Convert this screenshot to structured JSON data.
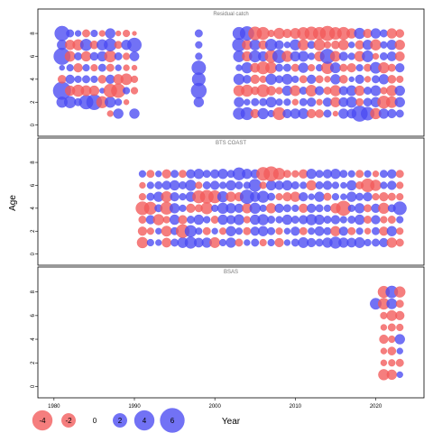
{
  "chart_data": {
    "type": "scatter",
    "subtype": "bubble-residuals",
    "xlabel": "Year",
    "ylabel": "Age",
    "xlim": [
      1978,
      2026
    ],
    "ylim": [
      -0.5,
      9.5
    ],
    "x_ticks": [
      1980,
      1990,
      2000,
      2010,
      2020
    ],
    "y_ticks": [
      0,
      2,
      4,
      6,
      8
    ],
    "colors": {
      "positive": "#4a4af2",
      "negative": "#f25a5a",
      "frame": "#000000",
      "panel_title": "#777777"
    },
    "legend": {
      "placement": "bottom-left",
      "entries": [
        {
          "label": "-4",
          "value": -4
        },
        {
          "label": "-2",
          "value": -2
        },
        {
          "label": "0",
          "value": 0
        },
        {
          "label": "2",
          "value": 2
        },
        {
          "label": "4",
          "value": 4
        },
        {
          "label": "6",
          "value": 6
        }
      ]
    },
    "panels": [
      {
        "name": "Residual catch",
        "ages": [
          1,
          2,
          3,
          4,
          5,
          6,
          7,
          8
        ],
        "years": [
          1981,
          1982,
          1983,
          1984,
          1985,
          1986,
          1987,
          1988,
          1989,
          1990,
          1998,
          2003,
          2004,
          2005,
          2006,
          2007,
          2008,
          2009,
          2010,
          2011,
          2012,
          2013,
          2014,
          2015,
          2016,
          2017,
          2018,
          2019,
          2020,
          2021,
          2022,
          2023
        ],
        "residuals": [
          [
            null,
            null,
            null,
            null,
            null,
            null,
            -0.4,
            1.0,
            null,
            1.0,
            null,
            1.4,
            1.6,
            -0.8,
            1.2,
            0.5,
            -1.6,
            0.8,
            1.0,
            1.1,
            -0.8,
            -0.7,
            0.6,
            -0.3,
            1.0,
            0.9,
            2.5,
            1.8,
            -1.2,
            1.0,
            0.8,
            0.6
          ],
          [
            1.2,
            1.4,
            0.6,
            2.0,
            2.4,
            -1.4,
            1.2,
            0.5,
            -0.3,
            null,
            1.0,
            1.0,
            0.4,
            0.6,
            0.6,
            1.1,
            0.5,
            0.5,
            -0.4,
            0.6,
            0.8,
            -0.4,
            0.8,
            -1.0,
            0.9,
            1.2,
            -0.6,
            0.7,
            1.0,
            -1.6,
            -1.3,
            1.0
          ],
          [
            3.2,
            -1.0,
            -1.4,
            -1.1,
            -1.0,
            0.3,
            -1.8,
            -2.0,
            0.5,
            -0.5,
            2.4,
            -1.2,
            -1.4,
            -0.7,
            -1.6,
            -0.9,
            -0.5,
            1.0,
            -1.1,
            0.6,
            -1.3,
            0.8,
            -0.6,
            -1.2,
            0.8,
            1.1,
            -1.0,
            0.6,
            1.1,
            -0.5,
            -1.2,
            1.0
          ],
          [
            -0.7,
            0.8,
            0.5,
            0.6,
            0.5,
            -0.7,
            0.8,
            -1.0,
            -1.3,
            -0.5,
            1.8,
            1.2,
            0.7,
            -0.8,
            -0.5,
            1.2,
            0.6,
            1.1,
            0.5,
            -0.6,
            0.8,
            -0.6,
            -0.4,
            1.0,
            -0.7,
            0.3,
            0.8,
            -0.4,
            0.6,
            1.0,
            -0.7,
            -0.5
          ],
          [
            0.3,
            0.5,
            -0.8,
            0.5,
            -0.5,
            0.6,
            -0.6,
            0.4,
            -0.4,
            -0.3,
            2.0,
            0.4,
            1.2,
            -0.9,
            -1.6,
            -1.3,
            0.6,
            0.6,
            -0.6,
            1.0,
            -0.5,
            0.5,
            -1.5,
            1.1,
            -0.6,
            -0.8,
            0.5,
            -0.6,
            1.3,
            -1.2,
            -0.6,
            0.8
          ],
          [
            2.8,
            -1.1,
            0.6,
            -1.0,
            0.7,
            1.0,
            -1.4,
            0.6,
            -0.5,
            0.9,
            0.5,
            1.3,
            -1.0,
            1.4,
            1.0,
            -1.6,
            1.8,
            -1.2,
            1.0,
            1.1,
            0.5,
            -1.0,
            2.2,
            -1.1,
            0.8,
            0.5,
            -1.1,
            1.3,
            -0.4,
            0.6,
            0.9,
            -0.9
          ],
          [
            1.0,
            -1.0,
            -1.2,
            1.4,
            -0.7,
            1.2,
            1.6,
            -0.6,
            1.0,
            2.0,
            0.5,
            1.8,
            -1.0,
            1.2,
            -0.8,
            1.4,
            0.8,
            0.4,
            1.2,
            -1.2,
            0.6,
            -1.3,
            -0.5,
            -0.7,
            -1.1,
            0.4,
            -0.8,
            1.0,
            -1.2,
            0.5,
            1.0,
            -1.0
          ],
          [
            2.2,
            0.6,
            0.4,
            -0.6,
            0.5,
            -0.4,
            1.0,
            -0.3,
            -0.5,
            -0.2,
            0.6,
            1.6,
            2.0,
            -1.8,
            -1.6,
            -0.5,
            -1.2,
            -0.8,
            -1.1,
            -1.5,
            -1.8,
            -1.6,
            -2.2,
            -1.5,
            -1.6,
            -1.0,
            1.2,
            -0.8,
            1.0,
            0.6,
            -1.0,
            -0.7
          ]
        ]
      },
      {
        "name": "BTS COAST",
        "ages": [
          1,
          2,
          3,
          4,
          5,
          6,
          7
        ],
        "years": [
          1991,
          1992,
          1993,
          1994,
          1995,
          1996,
          1997,
          1998,
          1999,
          2000,
          2001,
          2002,
          2003,
          2004,
          2005,
          2006,
          2007,
          2008,
          2009,
          2010,
          2011,
          2012,
          2013,
          2014,
          2015,
          2016,
          2017,
          2018,
          2019,
          2020,
          2021,
          2022,
          2023
        ],
        "residuals": [
          [
            -1.2,
            0.5,
            0.4,
            -0.9,
            0.6,
            1.1,
            1.4,
            0.9,
            1.0,
            -1.1,
            0.5,
            1.0,
            -0.6,
            0.4,
            0.6,
            -0.5,
            0.5,
            -0.8,
            0.4,
            0.6,
            1.1,
            0.8,
            0.6,
            1.0,
            1.4,
            1.0,
            0.9,
            1.1,
            0.5,
            0.6,
            0.8,
            -1.0,
            -0.6
          ],
          [
            -0.8,
            -0.5,
            0.4,
            -1.1,
            0.6,
            -1.8,
            1.4,
            0.5,
            -0.6,
            0.4,
            -0.5,
            1.0,
            0.5,
            -0.6,
            0.8,
            1.0,
            0.6,
            -0.5,
            0.4,
            0.8,
            -0.6,
            0.5,
            0.9,
            0.6,
            -1.0,
            0.8,
            -0.6,
            0.5,
            -0.4,
            0.6,
            -0.8,
            1.0,
            -0.5
          ],
          [
            -0.6,
            0.8,
            -1.2,
            -0.5,
            1.0,
            -0.8,
            0.6,
            1.0,
            0.5,
            -0.6,
            1.0,
            0.8,
            1.1,
            -0.5,
            1.0,
            1.2,
            0.6,
            0.5,
            1.0,
            0.6,
            0.8,
            1.2,
            1.0,
            0.6,
            0.8,
            0.5,
            0.6,
            1.0,
            -0.6,
            0.8,
            -0.5,
            -0.6,
            0.5
          ],
          [
            -1.8,
            -1.6,
            0.6,
            -1.6,
            1.0,
            0.5,
            -0.8,
            -0.6,
            -1.4,
            0.5,
            1.2,
            1.0,
            0.8,
            -1.0,
            1.2,
            0.5,
            -1.0,
            0.8,
            0.6,
            0.5,
            -0.8,
            0.8,
            0.6,
            0.5,
            -1.0,
            -2.2,
            0.5,
            1.0,
            -0.6,
            0.8,
            -1.2,
            0.6,
            1.8
          ],
          [
            -0.5,
            0.6,
            1.0,
            -1.2,
            0.8,
            0.5,
            1.0,
            -1.6,
            -1.8,
            -1.6,
            1.2,
            -1.0,
            -0.8,
            2.0,
            1.0,
            1.4,
            0.6,
            -0.5,
            -0.8,
            -1.0,
            0.8,
            0.4,
            1.0,
            -0.6,
            0.5,
            0.4,
            1.0,
            0.6,
            0.8,
            -0.5,
            -0.8,
            -0.6,
            -0.5
          ],
          [
            -0.4,
            0.5,
            0.6,
            0.8,
            1.0,
            0.6,
            1.2,
            -0.5,
            0.6,
            0.8,
            0.5,
            1.0,
            0.6,
            0.5,
            1.6,
            -0.5,
            1.0,
            0.8,
            1.0,
            0.6,
            0.5,
            -1.0,
            0.6,
            0.8,
            0.5,
            0.4,
            1.0,
            -0.6,
            -1.8,
            -1.2,
            0.5,
            0.8,
            -0.5
          ],
          [
            0.5,
            -0.6,
            0.4,
            -0.8,
            0.6,
            -0.6,
            0.8,
            1.0,
            0.6,
            0.8,
            1.0,
            0.6,
            1.6,
            1.0,
            0.8,
            -1.8,
            -2.2,
            -1.4,
            -0.6,
            -0.5,
            -0.8,
            1.0,
            0.6,
            0.8,
            1.0,
            0.6,
            0.5,
            -0.6,
            0.5,
            -0.4,
            0.6,
            0.8,
            -0.6
          ]
        ]
      },
      {
        "name": "BSAS",
        "ages": [
          1,
          2,
          3,
          4,
          5,
          6,
          7,
          8
        ],
        "years": [
          2020,
          2021,
          2022,
          2023
        ],
        "residuals": [
          [
            null,
            -1.2,
            -1.0,
            0.4
          ],
          [
            null,
            -0.4,
            -0.5,
            -0.6
          ],
          [
            null,
            -0.4,
            -0.7,
            0.4
          ],
          [
            null,
            -0.8,
            -0.5,
            1.0
          ],
          [
            null,
            -0.4,
            -0.6,
            -0.5
          ],
          [
            null,
            -0.5,
            -1.1,
            -0.8
          ],
          [
            1.3,
            -1.3,
            1.1,
            -0.6
          ],
          [
            null,
            -1.4,
            1.5,
            -1.2
          ]
        ]
      }
    ]
  }
}
